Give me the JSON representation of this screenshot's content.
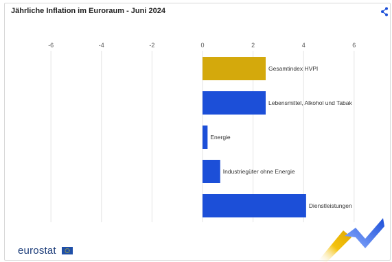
{
  "header": {
    "title": "Jährliche Inflation im Euroraum - Juni 2024"
  },
  "footer": {
    "brand": "eurostat"
  },
  "icons": {
    "share": "share-icon",
    "flag": "eu-flag-icon",
    "decoration": "eurostat-swoosh-icon"
  },
  "colors": {
    "highlight": "#D4A90C",
    "bar": "#1C4FD8",
    "grid": "#E3E3E3",
    "axis_text": "#555555",
    "brand": "#1D3D7A"
  },
  "chart_data": {
    "type": "bar",
    "orientation": "horizontal",
    "title": "Jährliche Inflation im Euroraum - Juni 2024",
    "categories": [
      "Gesamtindex HVPI",
      "Lebensmittel, Alkohol und Tabak",
      "Energie",
      "Industriegüter ohne Energie",
      "Dienstleistungen"
    ],
    "values": [
      2.5,
      2.5,
      0.2,
      0.7,
      4.1
    ],
    "highlight_index": 0,
    "xlim": [
      -6,
      7
    ],
    "x_ticks": [
      -6,
      -4,
      -2,
      0,
      2,
      4,
      6
    ],
    "grid": true
  }
}
